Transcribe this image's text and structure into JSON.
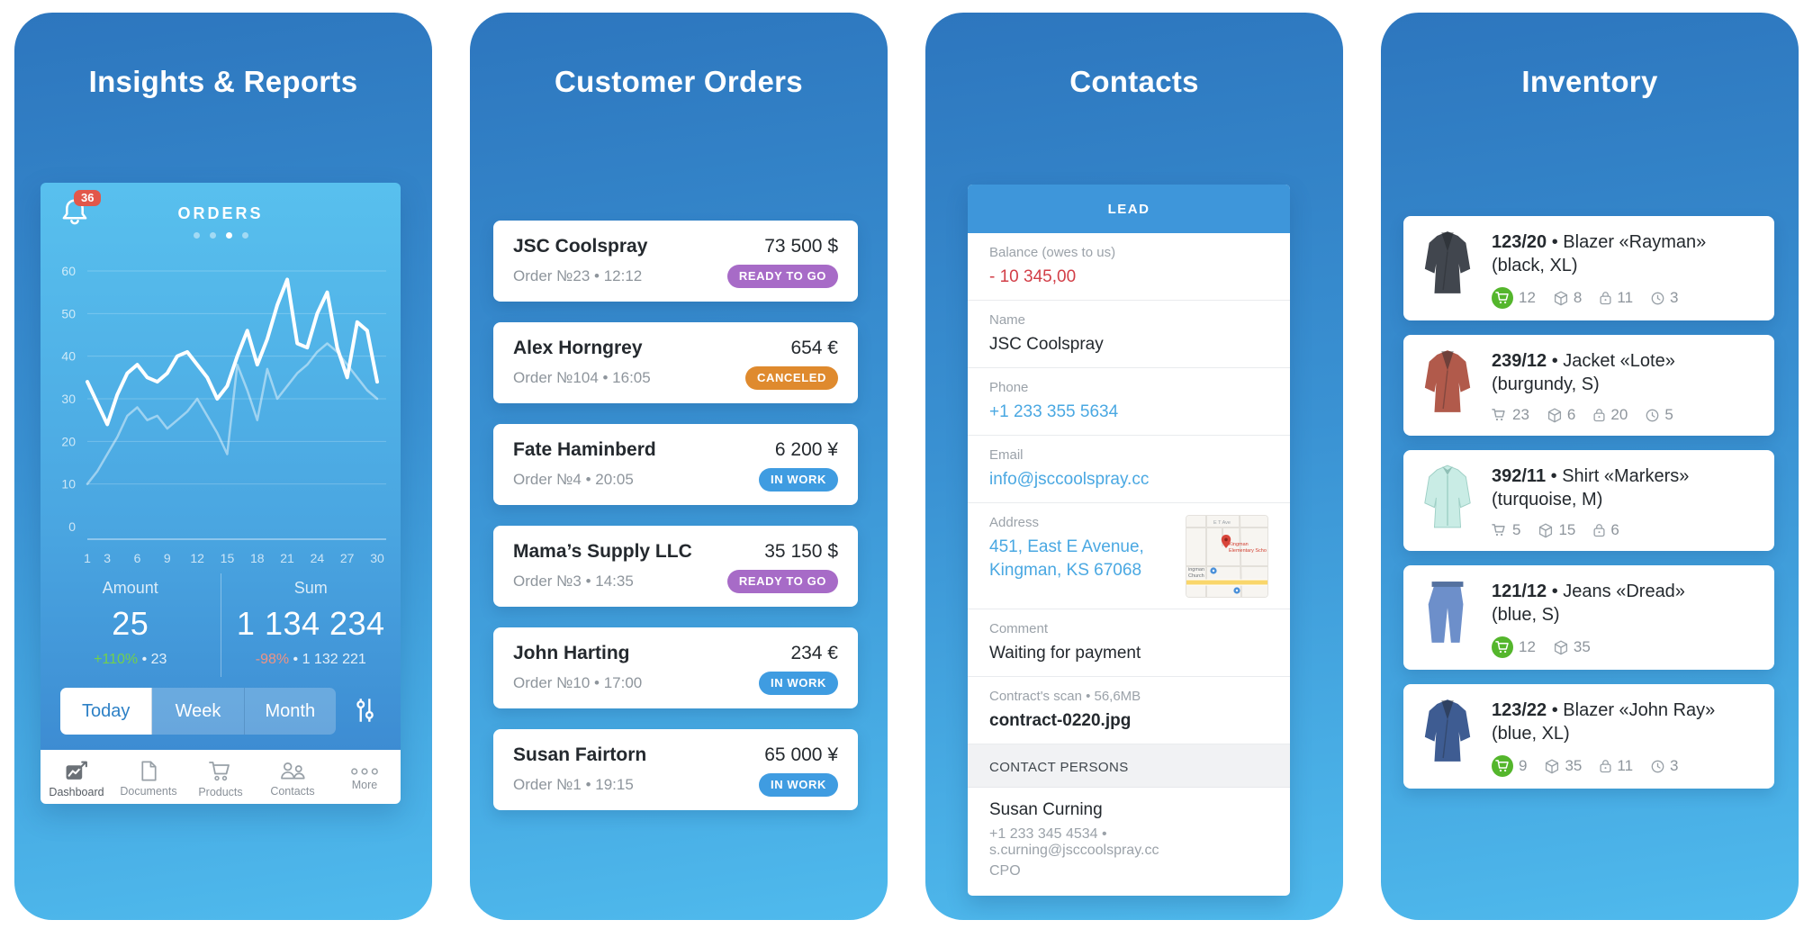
{
  "colors": {
    "phone_gradient_top": "#2d76be",
    "phone_gradient_bottom": "#4fbaed",
    "card_gradient_top": "#58c0ee",
    "card_gradient_bottom": "#3a86cf",
    "notification_badge": "#e2574a",
    "delta_positive": "#72d14b",
    "delta_negative": "#f09383",
    "link_blue": "#4aa8e2",
    "balance_negative": "#d23e47",
    "lead_bar": "#3e96da",
    "status": {
      "purple": "#a76bc7",
      "orange": "#df8a2e",
      "blue": "#3f9ce1"
    },
    "cart_green": "#54b62c",
    "map_pin_red": "#d8453a"
  },
  "panels": {
    "insights": {
      "title": "Insights & Reports",
      "card": {
        "header": "ORDERS",
        "notifications_count": "36",
        "page_dots": 4,
        "active_dot": 2,
        "stats": [
          {
            "label": "Amount",
            "value": "25",
            "delta": "+110%",
            "delta_color": "positive",
            "extra": "• 23"
          },
          {
            "label": "Sum",
            "value": "1 134 234",
            "delta": "-98%",
            "delta_color": "negative",
            "extra": "• 1 132 221"
          }
        ],
        "range_tabs": [
          {
            "label": "Today",
            "active": true
          },
          {
            "label": "Week",
            "active": false
          },
          {
            "label": "Month",
            "active": false
          }
        ],
        "tabbar": [
          {
            "label": "Dashboard",
            "icon": "dashboard-icon",
            "active": true
          },
          {
            "label": "Documents",
            "icon": "document-icon",
            "active": false
          },
          {
            "label": "Products",
            "icon": "cart-tab-icon",
            "active": false
          },
          {
            "label": "Contacts",
            "icon": "people-icon",
            "active": false
          },
          {
            "label": "More",
            "icon": "more-dots-icon",
            "active": false
          }
        ]
      }
    },
    "orders": {
      "title": "Customer Orders",
      "items": [
        {
          "customer": "JSC Coolspray",
          "amount": "73 500 $",
          "meta": "Order №23 • 12:12",
          "status": "READY TO GO",
          "status_color": "purple"
        },
        {
          "customer": "Alex Horngrey",
          "amount": "654 €",
          "meta": "Order №104 • 16:05",
          "status": "CANCELED",
          "status_color": "orange"
        },
        {
          "customer": "Fate Haminberd",
          "amount": "6 200 ¥",
          "meta": "Order №4 • 20:05",
          "status": "IN WORK",
          "status_color": "blue"
        },
        {
          "customer": "Mama’s Supply LLC",
          "amount": "35 150 $",
          "meta": "Order №3 • 14:35",
          "status": "READY TO GO",
          "status_color": "purple"
        },
        {
          "customer": "John Harting",
          "amount": "234 €",
          "meta": "Order №10 • 17:00",
          "status": "IN WORK",
          "status_color": "blue"
        },
        {
          "customer": "Susan Fairtorn",
          "amount": "65 000 ¥",
          "meta": "Order №1 • 19:15",
          "status": "IN WORK",
          "status_color": "blue"
        }
      ]
    },
    "contacts": {
      "title": "Contacts",
      "type_label": "LEAD",
      "fields": [
        {
          "label": "Balance (owes to us)",
          "value": "- 10 345,00",
          "style": "danger",
          "interactable": false
        },
        {
          "label": "Name",
          "value": "JSC Coolspray",
          "style": "dark",
          "interactable": false
        },
        {
          "label": "Phone",
          "value": "+1 233 355 5634",
          "style": "link",
          "interactable": true
        },
        {
          "label": "Email",
          "value": "info@jsccoolspray.cc",
          "style": "link",
          "interactable": true
        },
        {
          "label": "Address",
          "value": "451, East E Avenue,\nKingman, KS 67068",
          "style": "link",
          "interactable": true,
          "map": true
        },
        {
          "label": "Comment",
          "value": "Waiting for payment",
          "style": "dark",
          "interactable": false
        },
        {
          "label": "Contract's scan • 56,6MB",
          "value": "contract-0220.jpg",
          "style": "strong",
          "interactable": true
        }
      ],
      "map_labels": {
        "street": "E T Ave",
        "place_red": "Kingman Elementary Scho",
        "place_gray1": "ingman",
        "place_gray2": "Church"
      },
      "section_header": "CONTACT PERSONS",
      "person": {
        "name": "Susan Curning",
        "contact_line": "+1 233 345 4534 • s.curning@jsccoolspray.cc",
        "role": "CPO"
      }
    },
    "inventory": {
      "title": "Inventory",
      "items": [
        {
          "id": "123/20",
          "name": "Blazer «Rayman»",
          "attrs": "(black, XL)",
          "thumb": {
            "type": "jacket",
            "color": "#41464e"
          },
          "stats": [
            {
              "icon": "cart-icon",
              "green": true,
              "value": "12"
            },
            {
              "icon": "box-icon",
              "value": "8"
            },
            {
              "icon": "lock-icon",
              "value": "11"
            },
            {
              "icon": "clock-icon",
              "value": "3"
            }
          ]
        },
        {
          "id": "239/12",
          "name": "Jacket «Lote»",
          "attrs": "(burgundy, S)",
          "thumb": {
            "type": "jacket",
            "color": "#b15a4b"
          },
          "stats": [
            {
              "icon": "cart-icon",
              "value": "23"
            },
            {
              "icon": "box-icon",
              "value": "6"
            },
            {
              "icon": "lock-icon",
              "value": "20"
            },
            {
              "icon": "clock-icon",
              "value": "5"
            }
          ]
        },
        {
          "id": "392/11",
          "name": "Shirt «Markers»",
          "attrs": "(turquoise, M)",
          "thumb": {
            "type": "shirt",
            "color": "#c9ece5"
          },
          "stats": [
            {
              "icon": "cart-icon",
              "value": "5"
            },
            {
              "icon": "box-icon",
              "value": "15"
            },
            {
              "icon": "lock-icon",
              "value": "6"
            }
          ]
        },
        {
          "id": "121/12",
          "name": "Jeans «Dread»",
          "attrs": "(blue, S)",
          "thumb": {
            "type": "jeans",
            "color": "#6d8fca"
          },
          "stats": [
            {
              "icon": "cart-icon",
              "green": true,
              "value": "12"
            },
            {
              "icon": "box-icon",
              "value": "35"
            }
          ]
        },
        {
          "id": "123/22",
          "name": "Blazer «John Ray»",
          "attrs": "(blue, XL)",
          "thumb": {
            "type": "jacket",
            "color": "#3e5c92"
          },
          "stats": [
            {
              "icon": "cart-icon",
              "green": true,
              "value": "9"
            },
            {
              "icon": "box-icon",
              "value": "35"
            },
            {
              "icon": "lock-icon",
              "value": "11"
            },
            {
              "icon": "clock-icon",
              "value": "3"
            }
          ]
        }
      ]
    }
  },
  "chart_data": {
    "type": "line",
    "title": "ORDERS",
    "x": [
      1,
      2,
      3,
      4,
      5,
      6,
      7,
      8,
      9,
      10,
      11,
      12,
      13,
      14,
      15,
      16,
      17,
      18,
      19,
      20,
      21,
      22,
      23,
      24,
      25,
      26,
      27,
      28,
      29,
      30
    ],
    "x_tick_labels": [
      1,
      3,
      6,
      9,
      12,
      15,
      18,
      21,
      24,
      27,
      30
    ],
    "ylim": [
      0,
      60
    ],
    "y_ticks": [
      0,
      10,
      20,
      30,
      40,
      50,
      60
    ],
    "grid": true,
    "legend": "none",
    "series": [
      {
        "name": "orders-current",
        "emphasis": "bold",
        "values": [
          34,
          29,
          24,
          31,
          36,
          38,
          35,
          34,
          36,
          40,
          41,
          38,
          35,
          30,
          33,
          40,
          46,
          38,
          44,
          52,
          58,
          43,
          42,
          50,
          55,
          42,
          35,
          48,
          46,
          34
        ]
      },
      {
        "name": "orders-previous",
        "emphasis": "light",
        "values": [
          10,
          13,
          17,
          21,
          26,
          28,
          25,
          26,
          23,
          25,
          27,
          30,
          26,
          22,
          17,
          38,
          32,
          25,
          37,
          30,
          33,
          36,
          38,
          41,
          43,
          41,
          38,
          35,
          32,
          30
        ]
      }
    ]
  }
}
